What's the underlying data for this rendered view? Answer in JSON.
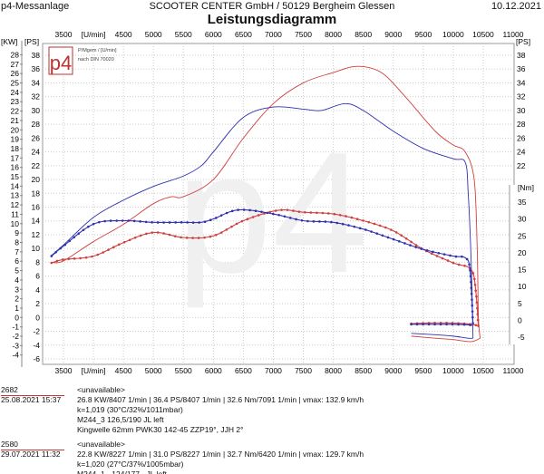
{
  "header": {
    "app": "p4-Messanlage",
    "company": "SCOOTER CENTER GmbH / 50129 Bergheim Glessen",
    "date": "10.12.2021",
    "title": "Leistungsdiagramm"
  },
  "logo": {
    "text": "p4",
    "caption": "P/Mgem / [U/min]",
    "norm": "nach DIN 70020"
  },
  "colors": {
    "run1": "#d04040",
    "run2": "#3030b0",
    "grid": "#bbbbbb"
  },
  "chart_data": {
    "type": "line",
    "title": "Leistungsdiagramm",
    "xlabel": "[U/min]",
    "x_ticks": [
      "3500",
      "[U/min]",
      "4500",
      "5000",
      "5500",
      "6000",
      "6500",
      "7000",
      "7500",
      "8000",
      "8500",
      "9000",
      "9500",
      "10000",
      "10500",
      "11000"
    ],
    "x_tick_values": [
      3500,
      4000,
      4500,
      5000,
      5500,
      6000,
      6500,
      7000,
      7500,
      8000,
      8500,
      9000,
      9500,
      10000,
      10500,
      11000
    ],
    "xlim": [
      3140,
      11000
    ],
    "ylabel_kw": "[KW]",
    "ylabel_ps": "[PS]",
    "ylabel_nm": "[Nm]",
    "ps_lim": [
      -6,
      40
    ],
    "ps_ticks": [
      -6,
      -4,
      -2,
      0,
      2,
      4,
      6,
      8,
      10,
      12,
      14,
      16,
      18,
      20,
      22,
      24,
      26,
      28,
      30,
      32,
      34,
      36,
      38
    ],
    "ps_right_ticks": [
      22,
      24,
      26,
      28,
      30,
      32,
      34,
      36,
      38
    ],
    "kw_ticks": [
      -4,
      -3,
      -2,
      -1,
      0,
      1,
      2,
      3,
      4,
      5,
      6,
      7,
      8,
      9,
      10,
      11,
      12,
      13,
      14,
      15,
      16,
      17,
      18,
      19,
      20,
      21,
      22,
      23,
      24,
      25,
      26,
      27,
      28
    ],
    "nm_ticks": [
      -5,
      0,
      5,
      10,
      15,
      20,
      25,
      30,
      35
    ],
    "series": [
      {
        "name": "2682 Power [PS]",
        "run": "run1",
        "axis": "ps",
        "marker": false,
        "x": [
          3300,
          3500,
          4000,
          4500,
          5000,
          5300,
          5500,
          6000,
          6500,
          7000,
          7500,
          8000,
          8400,
          8800,
          9200,
          9700,
          10000,
          10200,
          10350,
          10400,
          10420,
          10450
        ],
        "y": [
          8,
          8.2,
          11,
          13.5,
          16.5,
          17.5,
          17.5,
          20,
          26,
          31,
          34,
          35.5,
          36.4,
          35.5,
          32,
          27,
          25,
          24,
          20,
          10,
          0,
          -3
        ]
      },
      {
        "name": "2580 Power [PS]",
        "run": "run2",
        "axis": "ps",
        "marker": false,
        "x": [
          3300,
          3500,
          4000,
          4500,
          5000,
          5500,
          5800,
          6000,
          6500,
          7000,
          7500,
          7800,
          8200,
          8500,
          9000,
          9500,
          10000,
          10200,
          10250,
          10300,
          10330
        ],
        "y": [
          9,
          10.5,
          14.5,
          17,
          19,
          20.5,
          22,
          24,
          29,
          30.5,
          30.2,
          30,
          31,
          30,
          27,
          24.5,
          23,
          22.5,
          18,
          8,
          -3
        ]
      },
      {
        "name": "2682 Torque [Nm]",
        "run": "run1",
        "axis": "nm",
        "marker": true,
        "x": [
          3300,
          3500,
          4000,
          4500,
          5000,
          5500,
          6000,
          6500,
          7091,
          7500,
          8000,
          8500,
          9000,
          9500,
          10000,
          10300,
          10380,
          10420
        ],
        "y": [
          17,
          18,
          19,
          23,
          26,
          24.5,
          25,
          29.5,
          32.6,
          32,
          31.5,
          29.5,
          26.5,
          21,
          17,
          15,
          8,
          -2
        ]
      },
      {
        "name": "2580 Torque [Nm]",
        "run": "run2",
        "axis": "nm",
        "marker": true,
        "x": [
          3300,
          3500,
          4000,
          4500,
          5000,
          5500,
          5800,
          6000,
          6420,
          7000,
          7500,
          8000,
          8500,
          9000,
          9500,
          10000,
          10200,
          10280,
          10330
        ],
        "y": [
          19,
          22,
          28.5,
          29.5,
          29,
          29,
          29,
          30,
          32.7,
          31.5,
          29.5,
          29,
          27,
          24,
          21,
          19,
          18.5,
          15,
          -1
        ]
      },
      {
        "name": "2682 Loss [Nm]",
        "run": "run1",
        "axis": "nm",
        "marker": true,
        "x": [
          9300,
          9600,
          9900,
          10200,
          10400
        ],
        "y": [
          -1,
          -0.8,
          -0.8,
          -1,
          -1.5
        ]
      },
      {
        "name": "2580 Loss [Nm]",
        "run": "run2",
        "axis": "nm",
        "marker": true,
        "x": [
          9300,
          9600,
          9900,
          10200,
          10330
        ],
        "y": [
          -1.2,
          -1.2,
          -1.2,
          -1.3,
          -1.5
        ]
      },
      {
        "name": "2682 Loss [PS]",
        "run": "run1",
        "axis": "ps",
        "marker": false,
        "x": [
          9300,
          9700,
          10000,
          10300,
          10450
        ],
        "y": [
          -2.7,
          -3,
          -3.2,
          -3.5,
          -3
        ]
      },
      {
        "name": "2580 Loss [PS]",
        "run": "run2",
        "axis": "ps",
        "marker": false,
        "x": [
          9300,
          9700,
          10000,
          10250,
          10330
        ],
        "y": [
          -2.3,
          -2.5,
          -2.7,
          -3,
          -3
        ]
      }
    ]
  },
  "runs": [
    {
      "id": "2682",
      "datetime": "25.08.2021  15:37",
      "status": "<unavailable>",
      "summary": "26.8 KW/8407 1/min  |  36.4 PS/8407 1/min  |  32.6 Nm/7091 1/min | vmax: 132.9 km/h",
      "conditions": "k=1,019 (30°C/32%/1011mbar)",
      "setup1": "M244_3 126,5/190 JL left",
      "setup2": "Kingwelle 62mm PWK30 142-45 ZZP19°, JJH 2°"
    },
    {
      "id": "2580",
      "datetime": "29.07.2021  11:32",
      "status": "<unavailable>",
      "summary": "22.8 KW/8227 1/min  |  31.0 PS/8227 1/min  |  32.7 Nm/6420 1/min | vmax: 129.7 km/h",
      "conditions": "k=1,020 (27°C/37%/1005mbar)",
      "setup1": "M244_1 - 124/177 - JL left",
      "setup2": "Kingwelle 62mm PWK30 142-45 ZZP19°, JJH 2°"
    }
  ]
}
